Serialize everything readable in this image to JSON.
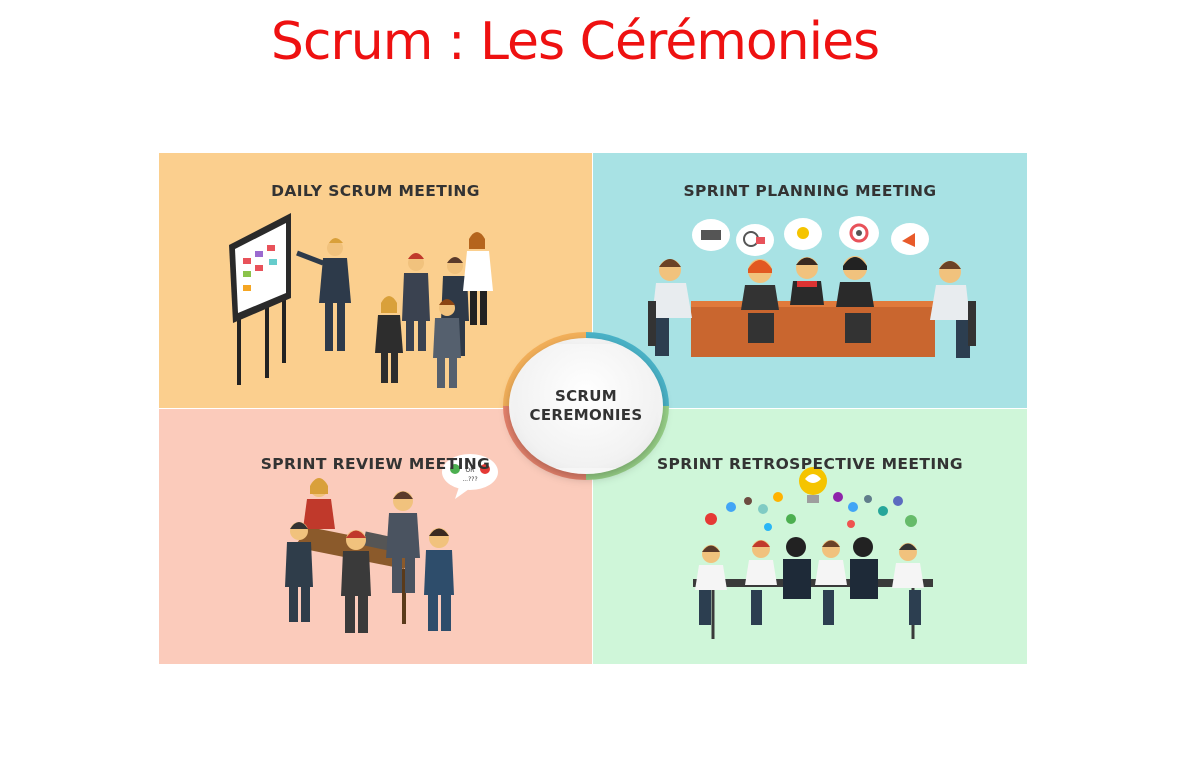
{
  "title": "Scrum : Les Cérémonies",
  "center": {
    "line1": "SCRUM",
    "line2": "CEREMONIES"
  },
  "quadrants": [
    {
      "label": "DAILY SCRUM MEETING",
      "color": "#fbcf8e"
    },
    {
      "label": "SPRINT PLANNING MEETING",
      "color": "#a8e2e4"
    },
    {
      "label": "SPRINT REVIEW MEETING",
      "color": "#fbcbbb"
    },
    {
      "label": "SPRINT RETROSPECTIVE MEETING",
      "color": "#cff6d9"
    }
  ],
  "bubble_text": {
    "or": "OR",
    "question": "...???"
  },
  "colors": {
    "title": "#ee1111",
    "label": "#333333"
  }
}
